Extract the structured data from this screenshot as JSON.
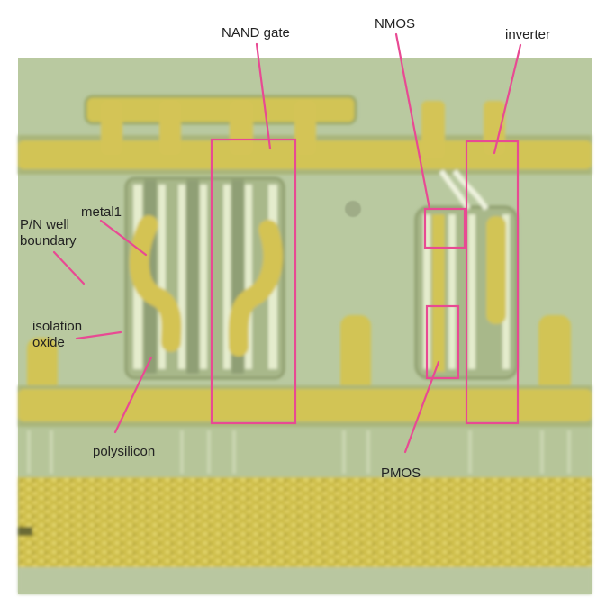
{
  "colors": {
    "background": "#b9c9a0",
    "metal": "#d2c454",
    "annotation": "#e84a93",
    "text": "#222222"
  },
  "labels": {
    "nand_gate": "NAND gate",
    "nmos": "NMOS",
    "inverter": "inverter",
    "metal1": "metal1",
    "pn_well_line1": "P/N well",
    "pn_well_line2": "boundary",
    "isolation_line1": "isolation",
    "isolation_line2": "oxide",
    "polysilicon": "polysilicon",
    "pmos": "PMOS"
  }
}
